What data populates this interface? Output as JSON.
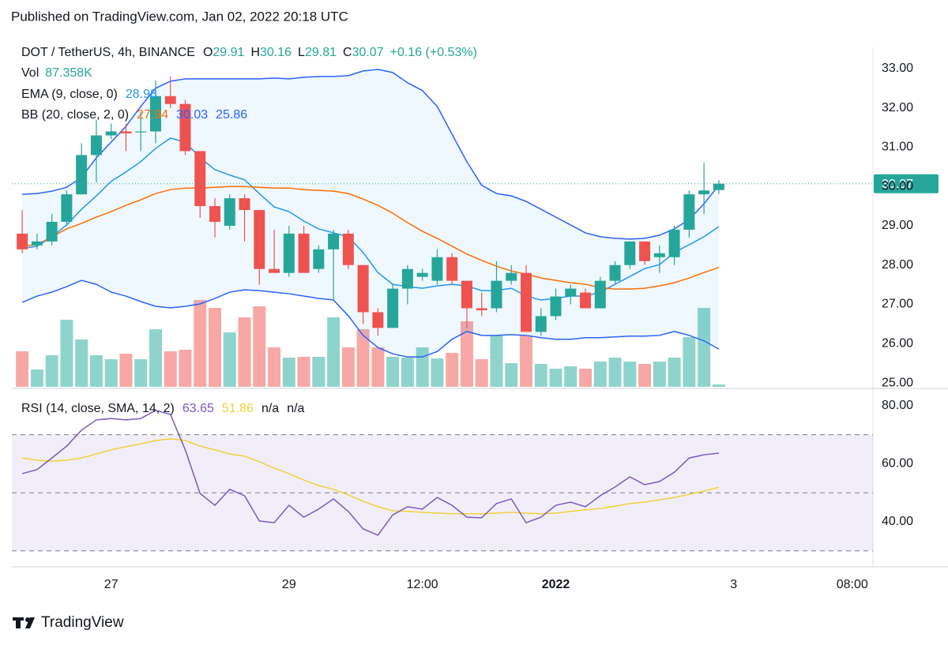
{
  "header": "Published on TradingView.com, Jan 02, 2022 20:18 UTC",
  "footer": {
    "brand": "TradingView"
  },
  "chart_data": [
    {
      "type": "candlestick",
      "title": "DOT / TetherUS, 4h, BINANCE",
      "ohlc_labels": [
        {
          "key": "O",
          "value": "29.91"
        },
        {
          "key": "H",
          "value": "30.16"
        },
        {
          "key": "L",
          "value": "29.81"
        },
        {
          "key": "C",
          "value": "30.07"
        }
      ],
      "change": "+0.16 (+0.53%)",
      "up_color": "#26a69a",
      "down_color": "#ef5350",
      "open": [
        28.8,
        28.5,
        28.6,
        29.1,
        29.8,
        30.8,
        31.3,
        31.4,
        31.4,
        31.4,
        32.3,
        32.1,
        30.9,
        29.5,
        29.0,
        29.7,
        29.4,
        27.9,
        27.8,
        28.8,
        27.9,
        28.4,
        28.8,
        28.0,
        26.8,
        26.4,
        27.4,
        27.7,
        27.6,
        28.2,
        27.6,
        26.9,
        26.9,
        27.6,
        27.8,
        26.3,
        26.7,
        27.2,
        27.3,
        26.9,
        27.6,
        28.0,
        28.6,
        28.2,
        28.2,
        28.9,
        29.8,
        29.91
      ],
      "high": [
        29.4,
        28.8,
        29.3,
        29.9,
        31.1,
        31.7,
        31.6,
        31.6,
        31.9,
        32.7,
        32.8,
        32.2,
        30.9,
        29.7,
        29.8,
        29.8,
        29.4,
        28.9,
        29.0,
        29.0,
        28.5,
        28.9,
        28.9,
        28.0,
        26.9,
        27.5,
        28.0,
        27.9,
        28.4,
        28.3,
        27.6,
        27.3,
        28.1,
        28.0,
        28.0,
        26.9,
        27.4,
        27.5,
        27.4,
        27.7,
        28.1,
        28.6,
        28.6,
        28.5,
        29.0,
        29.9,
        30.6,
        30.16
      ],
      "low": [
        28.3,
        28.4,
        28.5,
        29.0,
        29.8,
        30.1,
        31.2,
        30.9,
        30.9,
        31.1,
        32.0,
        30.8,
        29.2,
        28.7,
        28.9,
        28.6,
        27.5,
        27.8,
        27.7,
        27.8,
        27.8,
        27.1,
        27.9,
        26.5,
        26.2,
        26.4,
        27.0,
        27.6,
        27.5,
        27.5,
        26.4,
        26.7,
        26.8,
        27.5,
        26.3,
        26.2,
        26.6,
        27.0,
        26.9,
        26.9,
        27.5,
        27.9,
        28.0,
        27.8,
        28.0,
        28.7,
        29.3,
        29.81
      ],
      "close": [
        28.4,
        28.6,
        29.1,
        29.8,
        30.8,
        31.3,
        31.4,
        31.35,
        31.4,
        32.3,
        32.1,
        30.9,
        29.5,
        29.1,
        29.7,
        29.4,
        27.9,
        27.8,
        28.8,
        27.8,
        28.4,
        28.8,
        28.0,
        26.8,
        26.4,
        27.4,
        27.9,
        27.8,
        28.2,
        27.6,
        26.9,
        26.85,
        27.6,
        27.8,
        26.3,
        26.7,
        27.2,
        27.4,
        26.9,
        27.6,
        28.0,
        28.6,
        28.1,
        28.3,
        28.9,
        29.8,
        29.9,
        30.07
      ],
      "last_price_label": "30.07",
      "volume": {
        "name": "Vol",
        "value_label": "87.358K",
        "up_color": "#8fd4cc",
        "down_color": "#f7a8a6",
        "values": [
          1305,
          638,
          1160,
          2465,
          1740,
          1160,
          1015,
          1218,
          1015,
          2117,
          1305,
          1363,
          3190,
          2900,
          2001,
          2552,
          2958,
          1450,
          1073,
          1102,
          1102,
          2552,
          1450,
          2117,
          1450,
          1102,
          1073,
          1450,
          1044,
          1247,
          2407,
          1015,
          1885,
          870,
          1885,
          841,
          667,
          754,
          667,
          928,
          1073,
          928,
          841,
          928,
          1073,
          1827,
          2900,
          87.358
        ]
      },
      "indicators": [
        {
          "name": "EMA (9, close, 0)",
          "series": [
            {
              "color": "#2196f3",
              "value_label": "28.98",
              "values": [
                28.42,
                28.48,
                28.72,
                29.02,
                29.42,
                29.76,
                30.13,
                30.37,
                30.63,
                30.97,
                31.23,
                31.13,
                30.73,
                30.43,
                30.29,
                30.17,
                29.82,
                29.48,
                29.36,
                29.12,
                28.92,
                28.82,
                28.72,
                28.32,
                27.81,
                27.51,
                27.45,
                27.41,
                27.47,
                27.51,
                27.47,
                27.35,
                27.35,
                27.41,
                27.21,
                27.11,
                27.15,
                27.21,
                27.21,
                27.31,
                27.51,
                27.71,
                27.91,
                28.01,
                28.32,
                28.52,
                28.72,
                28.98
              ]
            }
          ]
        },
        {
          "name": "BB (20, close, 2, 0)",
          "fill": "rgba(33,150,243,0.07)",
          "series": [
            {
              "color": "#ff6d00",
              "value_label": "27.94",
              "values": [
                28.48,
                28.52,
                28.72,
                28.92,
                29.06,
                29.22,
                29.36,
                29.52,
                29.66,
                29.82,
                29.92,
                29.96,
                29.96,
                29.98,
                30.0,
                30.0,
                29.98,
                29.96,
                29.96,
                29.92,
                29.9,
                29.88,
                29.82,
                29.68,
                29.52,
                29.32,
                29.08,
                28.86,
                28.68,
                28.48,
                28.28,
                28.12,
                27.97,
                27.85,
                27.77,
                27.67,
                27.61,
                27.55,
                27.51,
                27.43,
                27.39,
                27.39,
                27.41,
                27.47,
                27.55,
                27.67,
                27.81,
                27.94
              ]
            },
            {
              "color": "#2962ff",
              "value_label": "30.03",
              "values": [
                29.8,
                29.82,
                29.88,
                29.98,
                30.23,
                30.73,
                31.13,
                31.53,
                32.04,
                32.5,
                32.68,
                32.74,
                32.74,
                32.74,
                32.74,
                32.74,
                32.74,
                32.76,
                32.74,
                32.78,
                32.8,
                32.8,
                32.82,
                32.94,
                32.98,
                32.9,
                32.64,
                32.44,
                32.04,
                31.33,
                30.63,
                30.03,
                29.82,
                29.76,
                29.62,
                29.42,
                29.22,
                29.02,
                28.82,
                28.72,
                28.68,
                28.66,
                28.68,
                28.76,
                28.92,
                29.16,
                29.56,
                30.03
              ]
            },
            {
              "color": "#2962ff",
              "value_label": "25.86",
              "values": [
                27.05,
                27.21,
                27.31,
                27.45,
                27.61,
                27.51,
                27.31,
                27.21,
                27.07,
                26.95,
                26.91,
                26.95,
                27.01,
                27.15,
                27.31,
                27.37,
                27.35,
                27.31,
                27.27,
                27.21,
                27.15,
                27.11,
                26.71,
                26.21,
                25.9,
                25.74,
                25.66,
                25.66,
                25.8,
                26.11,
                26.31,
                26.21,
                26.21,
                26.23,
                26.21,
                26.15,
                26.11,
                26.11,
                26.15,
                26.15,
                26.17,
                26.19,
                26.19,
                26.21,
                26.31,
                26.21,
                26.07,
                25.86
              ]
            }
          ]
        }
      ],
      "xlim": [
        -0.7,
        57.4
      ],
      "xticks": [
        {
          "value": 6,
          "label": "27"
        },
        {
          "value": 18,
          "label": "29"
        },
        {
          "value": 27,
          "label": "12:00"
        },
        {
          "value": 36,
          "label": "2022",
          "bold": true
        },
        {
          "value": 48,
          "label": "3"
        },
        {
          "value": 56,
          "label": "08:00"
        }
      ],
      "ylim": [
        24.86,
        33.44
      ],
      "yticks": [
        {
          "value": 25,
          "label": "25.00"
        },
        {
          "value": 26,
          "label": "26.00"
        },
        {
          "value": 27,
          "label": "27.00"
        },
        {
          "value": 28,
          "label": "28.00"
        },
        {
          "value": 29,
          "label": "29.00"
        },
        {
          "value": 30,
          "label": "30.00"
        },
        {
          "value": 31,
          "label": "31.00"
        },
        {
          "value": 32,
          "label": "32.00"
        },
        {
          "value": 33,
          "label": "33.00"
        }
      ]
    },
    {
      "type": "line",
      "title": "RSI (14, close, SMA, 14, 2)",
      "extra_labels": [
        "n/a",
        "n/a"
      ],
      "series": [
        {
          "color": "#7e57c2",
          "value_label": "63.65",
          "values": [
            56.6,
            58.0,
            62.0,
            66.1,
            71.6,
            75.1,
            75.6,
            75.1,
            75.6,
            78.4,
            77.0,
            64.8,
            49.8,
            45.7,
            51.2,
            49.0,
            40.3,
            39.7,
            45.7,
            41.6,
            44.4,
            47.9,
            43.6,
            37.6,
            35.4,
            42.4,
            45.2,
            44.4,
            48.4,
            45.7,
            41.6,
            41.4,
            46.3,
            47.9,
            39.7,
            41.6,
            45.7,
            46.8,
            45.2,
            49.0,
            52.0,
            55.5,
            52.8,
            53.9,
            57.1,
            62.0,
            63.1,
            63.65
          ]
        },
        {
          "color": "#f2d13a",
          "value_label": "51.86",
          "values": [
            62.0,
            61.2,
            60.9,
            61.2,
            62.0,
            63.4,
            64.8,
            65.9,
            66.9,
            68.0,
            68.6,
            68.0,
            66.1,
            64.8,
            63.4,
            62.6,
            60.7,
            58.5,
            56.6,
            54.4,
            52.5,
            51.2,
            49.3,
            47.1,
            45.2,
            43.8,
            43.6,
            43.3,
            43.0,
            42.8,
            42.8,
            42.8,
            43.0,
            43.3,
            43.0,
            42.8,
            43.0,
            43.6,
            44.1,
            44.6,
            45.4,
            46.3,
            46.8,
            47.6,
            48.4,
            49.5,
            50.6,
            51.86
          ]
        }
      ],
      "bands": [
        30,
        50,
        70
      ],
      "band_fill": "rgba(126,87,194,0.1)",
      "ylim": [
        24.5,
        84.6
      ],
      "yticks": [
        {
          "value": 40,
          "label": "40.00"
        },
        {
          "value": 60,
          "label": "60.00"
        },
        {
          "value": 80,
          "label": "80.00"
        }
      ]
    }
  ]
}
